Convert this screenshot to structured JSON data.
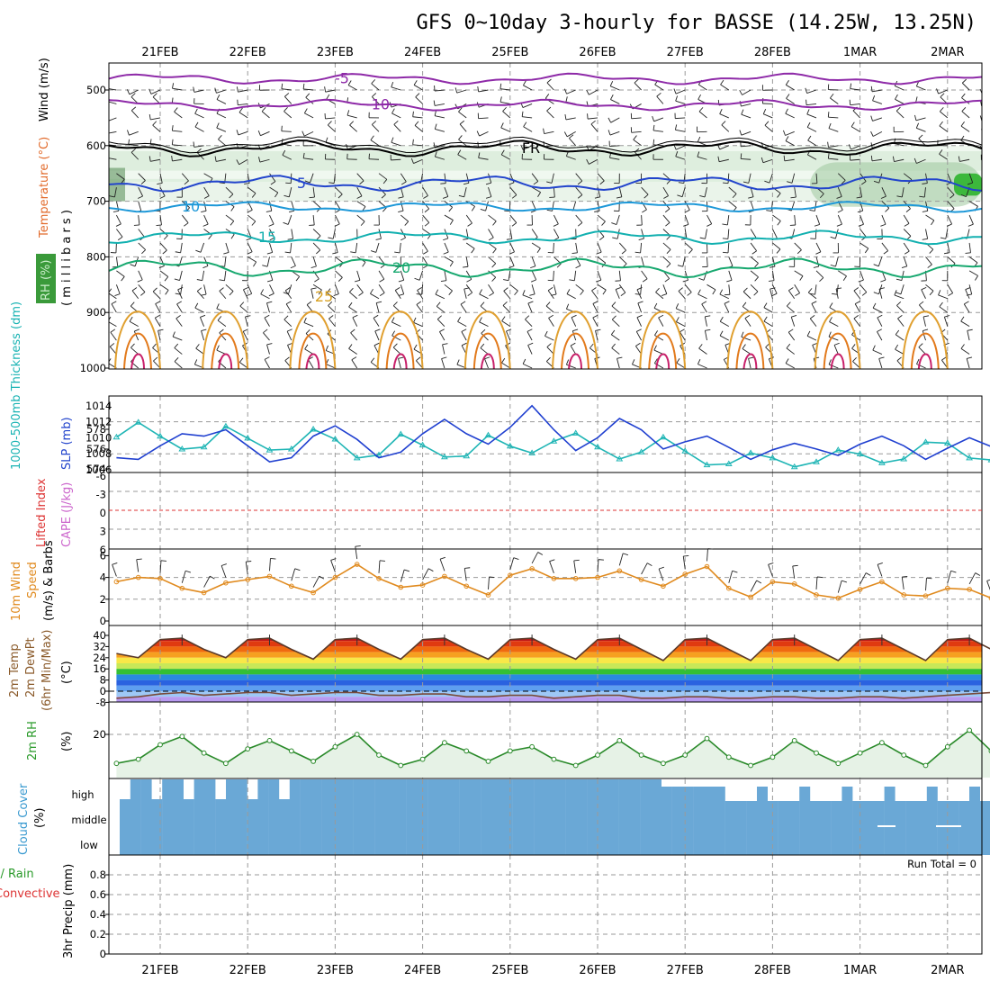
{
  "title": "GFS 0~10day 3-hourly for BASSE (14.25W, 13.25N)",
  "dates": [
    "21FEB",
    "22FEB",
    "23FEB",
    "24FEB",
    "25FEB",
    "26FEB",
    "27FEB",
    "28FEB",
    "1MAR",
    "2MAR"
  ],
  "panels": {
    "upper": {
      "labels": [
        "Temperature (°C)",
        "Wind (m/s)",
        "RH (%)",
        "(millibars)"
      ],
      "ylabel_letters": "( m i l l i b a r s )",
      "pressure_ticks": [
        "500",
        "600",
        "700",
        "800",
        "900",
        "1000"
      ],
      "isotherm_labels": [
        "-10",
        "-5",
        "FR",
        "5",
        "10",
        "15",
        "20",
        "25"
      ]
    },
    "slp": {
      "left_label": "1000-500mb Thickness (dm)",
      "right_label": "SLP (mb)",
      "left_ticks": [
        "578",
        "576",
        "574"
      ],
      "right_ticks": [
        "1014",
        "1012",
        "1010",
        "1008",
        "1006"
      ]
    },
    "cape": {
      "left_label": "Lifted Index",
      "right_label": "CAPE (J/kg)",
      "ticks": [
        "-6",
        "-3",
        "0",
        "3",
        "6"
      ]
    },
    "wind": {
      "label_a": "10m Wind",
      "label_b": "Speed",
      "label_c": "(m/s) & Barbs",
      "ticks": [
        "6",
        "4",
        "2",
        "0"
      ]
    },
    "temp": {
      "label_a": "2m Temp",
      "label_b": "2m DewPt",
      "label_c": "(6hr Min/Max)",
      "label_d": "(°C)",
      "ticks": [
        "40",
        "32",
        "24",
        "16",
        "8",
        "0",
        "-8"
      ]
    },
    "rh": {
      "label": "2m RH",
      "unit": "(%)",
      "ticks": [
        "20"
      ]
    },
    "cloud": {
      "label": "Cloud Cover",
      "unit": "(%)",
      "levels": [
        "high",
        "middle",
        "low"
      ]
    },
    "precip": {
      "label_a": "Total / Rain",
      "label_b": "Convective",
      "label_c": "3hr Precip (mm)",
      "run_total": "Run Total = 0",
      "ticks": [
        "0.8",
        "0.6",
        "0.4",
        "0.2",
        "0"
      ]
    }
  },
  "chart_data": [
    {
      "type": "line",
      "title": "2m Temp (°C)",
      "x_unit": "days since 20FEB 12Z",
      "x": [
        0,
        0.25,
        0.5,
        0.75,
        1,
        1.25,
        1.5,
        1.75,
        2,
        2.25,
        2.5,
        2.75,
        3,
        3.25,
        3.5,
        3.75,
        4,
        4.25,
        4.5,
        4.75,
        5,
        5.25,
        5.5,
        5.75,
        6,
        6.25,
        6.5,
        6.75,
        7,
        7.25,
        7.5,
        7.75,
        8,
        8.25,
        8.5,
        8.75,
        9,
        9.25,
        9.5,
        9.75,
        10,
        10.25
      ],
      "series": [
        {
          "name": "2m Temp",
          "values": [
            27,
            24,
            37,
            38,
            30,
            24,
            37,
            38,
            30,
            23,
            37,
            38,
            30,
            23,
            37,
            38,
            30,
            23,
            37,
            38,
            30,
            23,
            37,
            38,
            30,
            22,
            37,
            38,
            30,
            22,
            37,
            38,
            30,
            22,
            37,
            38,
            30,
            22,
            37,
            38,
            30,
            24
          ]
        },
        {
          "name": "2m DewPt",
          "values": [
            -5,
            -4,
            -2,
            -1,
            -3,
            -2,
            -1,
            -1,
            -3,
            -2,
            -1,
            -1,
            -3,
            -3,
            -2,
            -2,
            -4,
            -4,
            -3,
            -3,
            -5,
            -4,
            -3,
            -3,
            -5,
            -5,
            -4,
            -4,
            -5,
            -5,
            -4,
            -4,
            -5,
            -5,
            -4,
            -4,
            -5,
            -4,
            -3,
            -2,
            -1,
            1
          ]
        }
      ],
      "ylim": [
        -8,
        40
      ]
    },
    {
      "type": "line",
      "title": "SLP (mb) / 1000-500mb Thickness (dm)",
      "series": [
        {
          "name": "SLP",
          "unit": "mb",
          "values": [
            1007.5,
            1007.3,
            1009,
            1010.5,
            1010.2,
            1011,
            1009,
            1007,
            1007.5,
            1010.2,
            1011.5,
            1009.8,
            1007.5,
            1008.2,
            1010.5,
            1012.3,
            1010.5,
            1009.2,
            1011.3,
            1014,
            1011,
            1008.4,
            1010,
            1012.4,
            1011,
            1008.6,
            1009.5,
            1010.2,
            1008.8,
            1007.3,
            1008.5,
            1009.3,
            1008.6,
            1007.8,
            1009.2,
            1010.2,
            1009,
            1007.3,
            1008.7,
            1010,
            1008.9,
            1008.5
          ]
        },
        {
          "name": "1000-500mb Thickness",
          "unit": "dm",
          "values": [
            577.2,
            578.7,
            577.3,
            576,
            576.2,
            578.3,
            577.1,
            575.9,
            576,
            578,
            577,
            575.1,
            575.4,
            577.5,
            576.4,
            575.2,
            575.3,
            577.4,
            576.3,
            575.6,
            576.8,
            577.6,
            576.2,
            575,
            575.7,
            577.2,
            575.8,
            574.4,
            574.5,
            575.6,
            575.1,
            574.2,
            574.7,
            575.9,
            575.5,
            574.6,
            575,
            576.7,
            576.6,
            575.1,
            574.9,
            575.6
          ]
        }
      ]
    },
    {
      "type": "line",
      "title": "10m Wind Speed (m/s)",
      "values": [
        3.6,
        4.0,
        3.9,
        3.0,
        2.6,
        3.5,
        3.8,
        4.1,
        3.2,
        2.6,
        4.0,
        5.2,
        3.9,
        3.1,
        3.3,
        4.1,
        3.2,
        2.4,
        4.2,
        4.8,
        3.9,
        3.9,
        4.0,
        4.6,
        3.8,
        3.2,
        4.3,
        5.0,
        3.0,
        2.2,
        3.6,
        3.4,
        2.4,
        2.1,
        2.9,
        3.6,
        2.4,
        2.3,
        3.0,
        2.9,
        2.1,
        2.6
      ],
      "ylim": [
        0,
        6
      ]
    },
    {
      "type": "line",
      "title": "2m RH (%)",
      "values": [
        6,
        8,
        15,
        19,
        11,
        6,
        13,
        17,
        12,
        7,
        14,
        20,
        10,
        5,
        8,
        16,
        12,
        7,
        12,
        14,
        8,
        5,
        10,
        17,
        10,
        6,
        10,
        18,
        9,
        5,
        9,
        17,
        11,
        6,
        11,
        16,
        10,
        5,
        14,
        22,
        12,
        26
      ],
      "ylim": [
        0,
        35
      ]
    },
    {
      "type": "table",
      "title": "3hr Precip (mm)",
      "values": [
        0,
        0,
        0,
        0,
        0,
        0,
        0,
        0,
        0,
        0,
        0,
        0,
        0,
        0,
        0,
        0,
        0,
        0,
        0,
        0,
        0,
        0,
        0,
        0,
        0,
        0,
        0,
        0,
        0,
        0,
        0,
        0,
        0,
        0,
        0,
        0,
        0,
        0,
        0,
        0,
        0,
        0
      ],
      "ylim": [
        0,
        1
      ]
    }
  ]
}
